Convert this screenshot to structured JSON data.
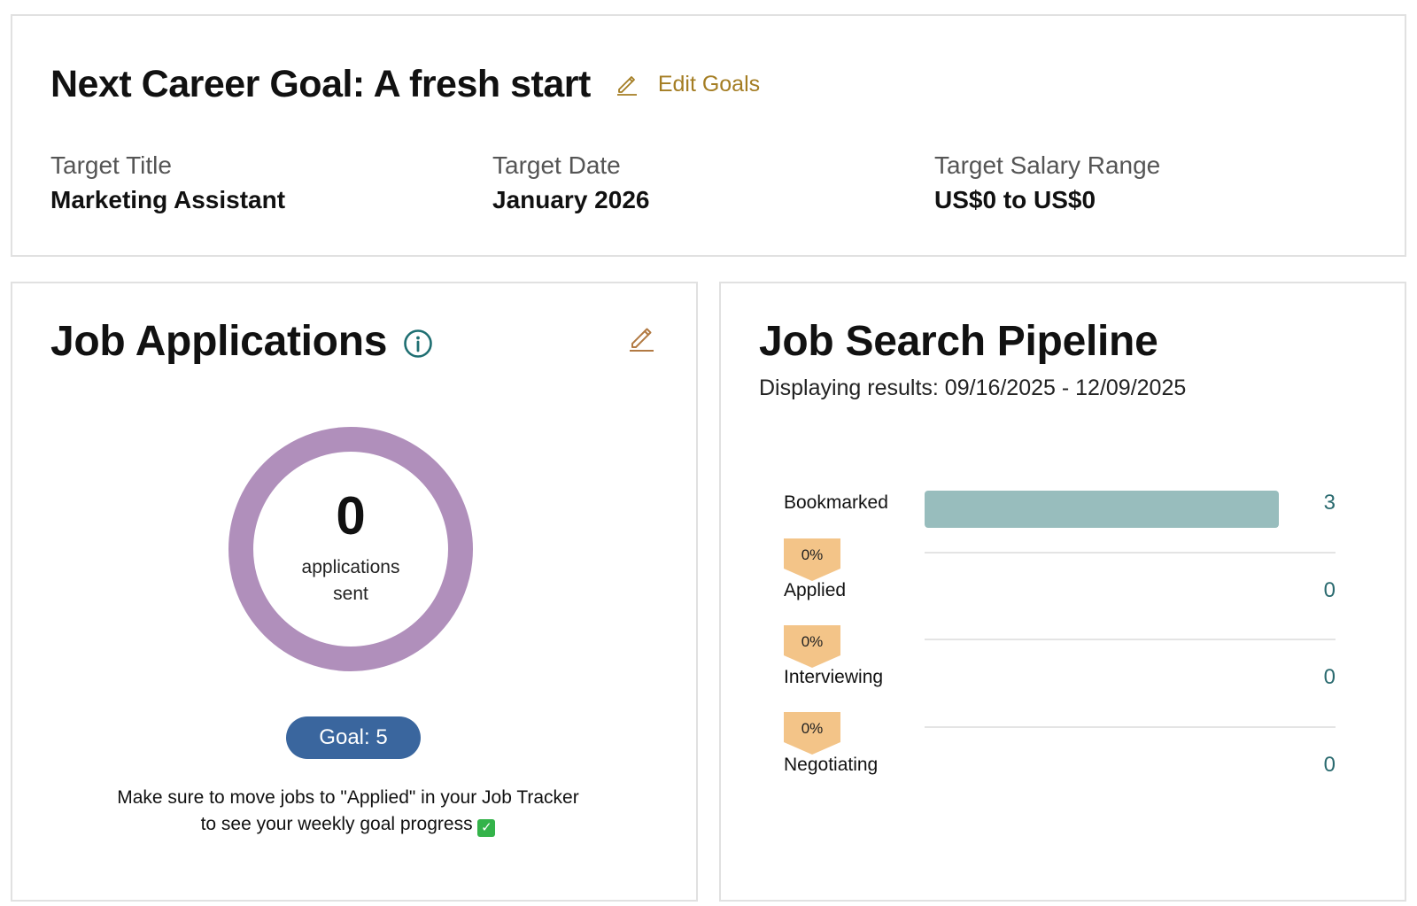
{
  "goal": {
    "title": "Next Career Goal: A fresh start",
    "edit_label": "Edit Goals",
    "fields": [
      {
        "label": "Target Title",
        "value": "Marketing Assistant"
      },
      {
        "label": "Target Date",
        "value": "January 2026"
      },
      {
        "label": "Target Salary Range",
        "value": "US$0 to US$0"
      }
    ]
  },
  "applications": {
    "title": "Job Applications",
    "count": "0",
    "count_label": "applications sent",
    "goal_label": "Goal: 5",
    "note": "Make sure to move jobs to \"Applied\" in your Job Tracker to see your weekly goal progress",
    "progress_fraction": 0,
    "ring_color": "#b08fbb"
  },
  "pipeline": {
    "title": "Job Search Pipeline",
    "subtitle": "Displaying results: 09/16/2025 - 12/09/2025",
    "bar_color": "#98bdbd",
    "stages": [
      {
        "label": "Bookmarked",
        "count": "3",
        "value": 3
      },
      {
        "label": "Applied",
        "count": "0",
        "value": 0
      },
      {
        "label": "Interviewing",
        "count": "0",
        "value": 0
      },
      {
        "label": "Negotiating",
        "count": "0",
        "value": 0
      }
    ],
    "conversions": [
      "0%",
      "0%",
      "0%"
    ]
  },
  "icons": {
    "edit": "pencil-icon",
    "info": "info-icon",
    "check": "check-mark-icon"
  }
}
